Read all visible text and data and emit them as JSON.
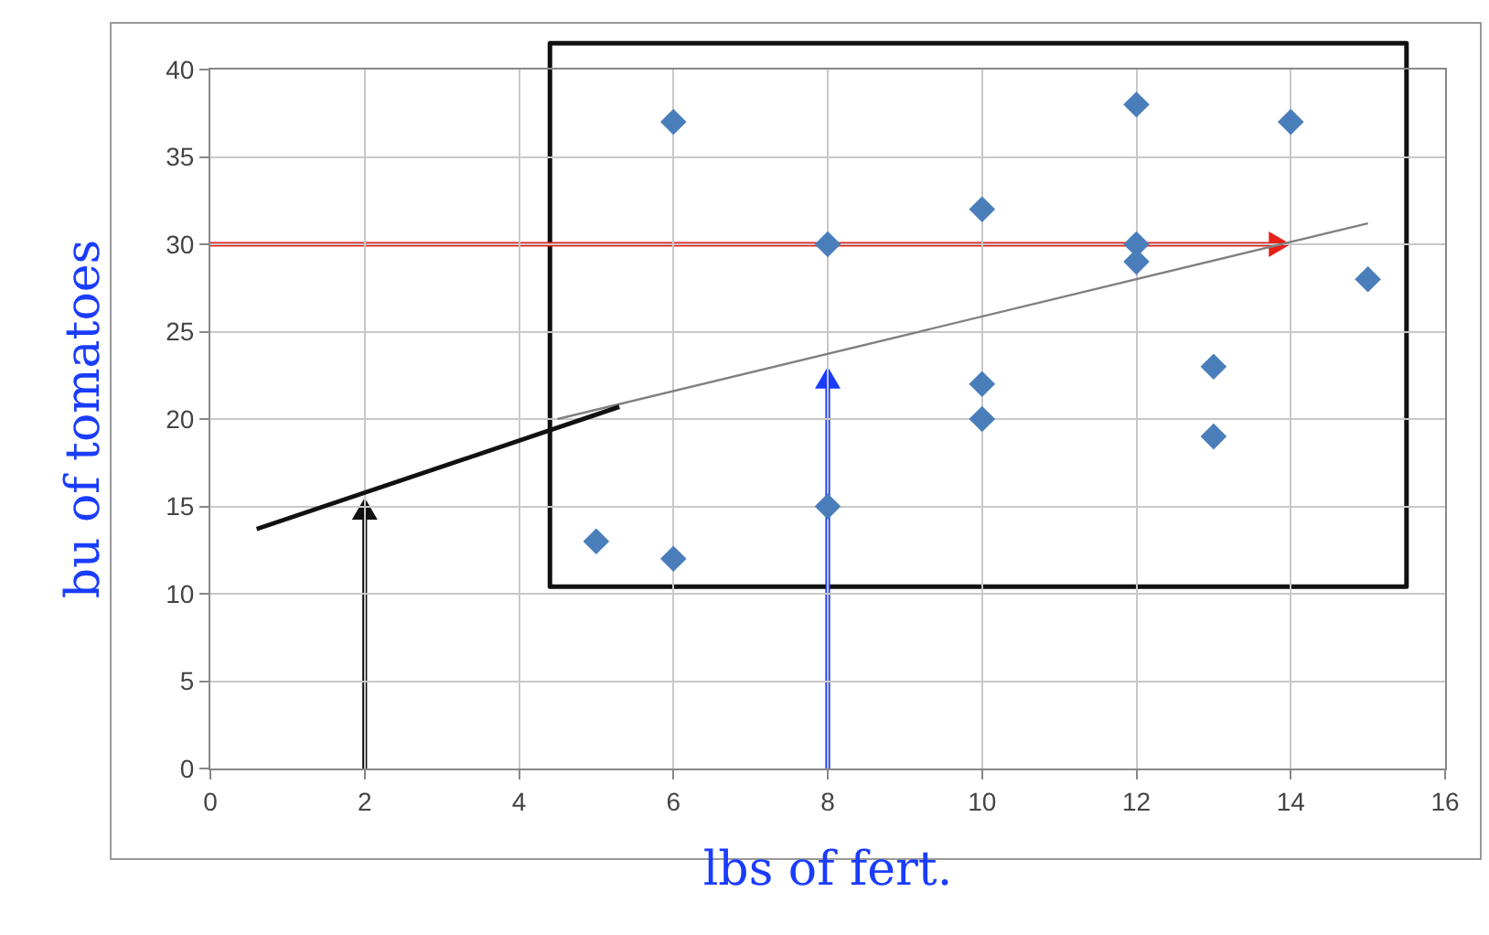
{
  "chart_data": {
    "type": "scatter",
    "xlabel": "lbs of fert.",
    "ylabel": "bu of tomatoes",
    "x": [
      5,
      6,
      6,
      8,
      8,
      10,
      10,
      10,
      12,
      12,
      12,
      13,
      13,
      14,
      15
    ],
    "series": [
      {
        "marker": "diamond",
        "color": "#4a7ebb",
        "values": [
          13,
          37,
          12,
          30,
          15,
          32,
          22,
          20,
          38,
          30,
          29,
          23,
          19,
          37,
          28
        ]
      },
      {
        "type": "line",
        "marker": "none",
        "color": "#808080",
        "x": [
          4.5,
          15
        ],
        "values": [
          20,
          31.2
        ]
      },
      {
        "type": "line",
        "marker": "none",
        "color": "#111111",
        "x": [
          0.6,
          5.3
        ],
        "values": [
          13.7,
          20.7
        ]
      }
    ],
    "xlim": [
      0,
      16
    ],
    "xticks": [
      0,
      2,
      4,
      6,
      8,
      10,
      12,
      14,
      16
    ],
    "ylim": [
      0,
      40
    ],
    "yticks": [
      0,
      5,
      10,
      15,
      20,
      25,
      30,
      35,
      40
    ],
    "grid": true
  }
}
